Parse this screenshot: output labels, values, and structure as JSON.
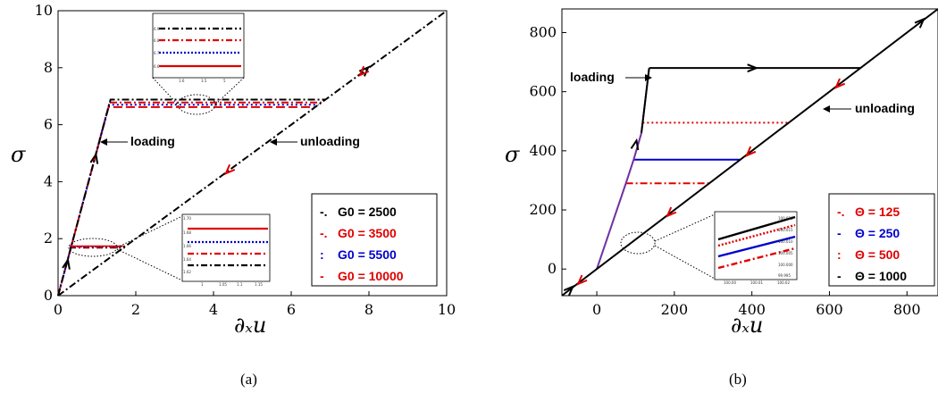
{
  "chart_data": [
    {
      "type": "line",
      "caption": "(a)",
      "xlabel": "∂ₓu",
      "ylabel": "σ",
      "xlim": [
        0,
        10
      ],
      "ylim": [
        0,
        10
      ],
      "xticks": [
        "0",
        "2",
        "4",
        "6",
        "8",
        "10"
      ],
      "yticks": [
        "0",
        "2",
        "4",
        "6",
        "8",
        "10"
      ],
      "legend_position": "bottom-right",
      "annotations": [
        "loading",
        "unloading"
      ],
      "series": [
        {
          "name": "G0 = 2500",
          "color": "#000000",
          "dash": "dashdot",
          "points": [
            [
              0,
              0
            ],
            [
              1.35,
              6.88
            ],
            [
              6.88,
              6.88
            ],
            [
              0,
              0
            ],
            [
              10,
              10
            ]
          ]
        },
        {
          "name": "G0 = 3500",
          "color": "#e00000",
          "dash": "dashdot",
          "points": [
            [
              0,
              0
            ],
            [
              1.33,
              6.78
            ],
            [
              6.78,
              6.78
            ]
          ]
        },
        {
          "name": "G0 = 5500",
          "color": "#0000cc",
          "dash": "dotted",
          "points": [
            [
              0,
              0
            ],
            [
              1.31,
              6.7
            ],
            [
              6.7,
              6.7
            ]
          ]
        },
        {
          "name": "G0 = 10000",
          "color": "#e00000",
          "dash": "dashed",
          "points": [
            [
              0,
              0
            ],
            [
              1.3,
              6.62
            ],
            [
              6.62,
              6.62
            ]
          ]
        }
      ],
      "lower_plateau": {
        "x": [
          0.3,
          1.72
        ],
        "y": 1.68
      },
      "inset_top": {
        "yticks": [
          "6.9",
          "6.8",
          "6.7",
          "6.6"
        ],
        "xticks": [
          "1.6",
          "3.5",
          "5"
        ]
      },
      "inset_bottom": {
        "yticks": [
          "1.70",
          "1.68",
          "1.66",
          "1.64",
          "1.62"
        ],
        "xticks": [
          "1",
          "1.05",
          "1.1",
          "1.15"
        ]
      }
    },
    {
      "type": "line",
      "caption": "(b)",
      "xlabel": "∂ₓu",
      "ylabel": "σ",
      "xlim": [
        -90,
        880
      ],
      "ylim": [
        -90,
        880
      ],
      "xticks": [
        "0",
        "200",
        "400",
        "600",
        "800"
      ],
      "yticks": [
        "0",
        "200",
        "400",
        "600",
        "800"
      ],
      "legend_position": "bottom-right",
      "annotations": [
        "loading",
        "unloading"
      ],
      "series": [
        {
          "name": "Θ = 125",
          "color": "#e00000",
          "dash": "dashdot",
          "plateau": 290,
          "x_end": 290
        },
        {
          "name": "Θ = 250",
          "color": "#0000cc",
          "dash": "solid",
          "plateau": 370,
          "x_end": 370
        },
        {
          "name": "Θ = 500",
          "color": "#e00000",
          "dash": "dotted",
          "plateau": 495,
          "x_end": 495
        },
        {
          "name": "Θ = 1000",
          "color": "#000000",
          "dash": "solid",
          "plateau": 680,
          "x_end": 680
        }
      ],
      "loading_branch": [
        [
          0,
          0
        ],
        [
          75,
          290
        ],
        [
          95,
          370
        ],
        [
          115,
          460
        ],
        [
          135,
          680
        ]
      ],
      "unloading_line": [
        [
          -90,
          -90
        ],
        [
          880,
          880
        ]
      ],
      "inset": {
        "yticks": [
          "100.020",
          "100.015",
          "100.010",
          "100.005",
          "100.000",
          "99.995"
        ],
        "xticks": [
          "100.00",
          "100.01",
          "100.02"
        ]
      }
    }
  ]
}
